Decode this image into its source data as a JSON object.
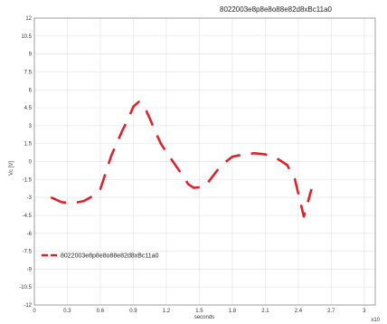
{
  "chart_data": {
    "type": "line",
    "title": "8022003e8p8e8o88e82d8xBc11a0",
    "xlabel": "seconds",
    "ylabel": "Vc [V]",
    "x_exponent_label": "x10",
    "xlim": [
      0,
      3.1
    ],
    "ylim": [
      -12,
      12
    ],
    "xticks": [
      "0",
      "0.3",
      "0.6",
      "0.9",
      "1.2",
      "1.5",
      "1.8",
      "2.1",
      "2.4",
      "2.7",
      "3"
    ],
    "yticks": [
      "12",
      "10.5",
      "9",
      "7.5",
      "6",
      "4.5",
      "3",
      "1.5",
      "0",
      "-1.5",
      "-3",
      "-4.5",
      "-6",
      "-7.5",
      "-9",
      "-10.5",
      "-12"
    ],
    "grid": true,
    "legend_position": "lower-left",
    "series": [
      {
        "name": "8022003e8p8e8o88e82d8xBc11a0",
        "color": "#e0202a",
        "line_style": "dashed",
        "x": [
          0.15,
          0.25,
          0.35,
          0.45,
          0.55,
          0.6,
          0.7,
          0.8,
          0.85,
          0.9,
          0.95,
          1.0,
          1.05,
          1.1,
          1.15,
          1.2,
          1.35,
          1.4,
          1.45,
          1.55,
          1.6,
          1.7,
          1.8,
          1.9,
          2.0,
          2.1,
          2.2,
          2.3,
          2.37,
          2.45,
          2.52
        ],
        "y": [
          -3.0,
          -3.4,
          -3.5,
          -3.3,
          -2.8,
          -2.3,
          0.5,
          2.6,
          3.5,
          4.6,
          5.0,
          4.6,
          3.6,
          2.5,
          1.5,
          0.8,
          -1.2,
          -1.9,
          -2.2,
          -2.1,
          -1.5,
          -0.3,
          0.4,
          0.6,
          0.7,
          0.6,
          0.3,
          -0.3,
          -1.5,
          -4.6,
          -2.3
        ]
      }
    ]
  }
}
